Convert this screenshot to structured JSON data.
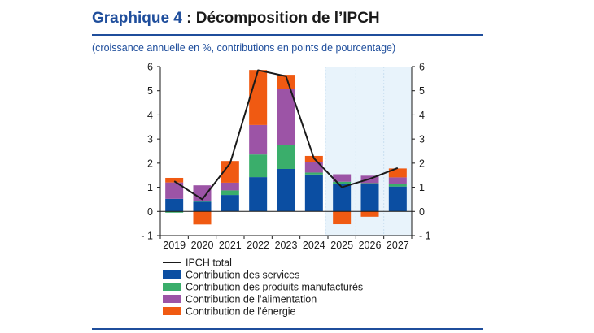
{
  "header": {
    "title_prefix": "Graphique 4",
    "title_rest": " : Décomposition de l’IPCH",
    "subtitle": "(croissance annuelle en %, contributions en points de pourcentage)"
  },
  "chart_data": {
    "type": "bar",
    "stacked": true,
    "categories": [
      "2019",
      "2020",
      "2021",
      "2022",
      "2023",
      "2024",
      "2025",
      "2026",
      "2027"
    ],
    "projection_shading": [
      "2025",
      "2027"
    ],
    "ylim": [
      -1,
      6
    ],
    "yticks": [
      -1,
      0,
      1,
      2,
      3,
      4,
      5,
      6
    ],
    "ytick_labels": [
      "- 1",
      "0",
      "1",
      "2",
      "3",
      "4",
      "5",
      "6"
    ],
    "grid": false,
    "legend_position": "bottom",
    "series": [
      {
        "name": "Contribution des services",
        "color": "#0b4ea2",
        "values": [
          0.52,
          0.4,
          0.68,
          1.42,
          1.76,
          1.53,
          1.13,
          1.12,
          1.03
        ]
      },
      {
        "name": "Contribution des produits manufacturés",
        "color": "#3aae6b",
        "values": [
          -0.05,
          0.02,
          0.19,
          0.94,
          0.99,
          0.08,
          0.1,
          0.05,
          0.12
        ]
      },
      {
        "name": "Contribution de l’alimentation",
        "color": "#9c54a6",
        "values": [
          0.68,
          0.66,
          0.32,
          1.22,
          2.32,
          0.45,
          0.31,
          0.31,
          0.26
        ]
      },
      {
        "name": "Contribution de l’énergie",
        "color": "#f05a12",
        "values": [
          0.19,
          -0.54,
          0.9,
          2.28,
          0.59,
          0.24,
          -0.53,
          -0.22,
          0.37
        ]
      }
    ],
    "line": {
      "name": "IPCH total",
      "color": "#1a1a1a",
      "values": [
        1.25,
        0.5,
        2.0,
        5.85,
        5.6,
        2.2,
        1.0,
        1.35,
        1.8
      ]
    }
  }
}
